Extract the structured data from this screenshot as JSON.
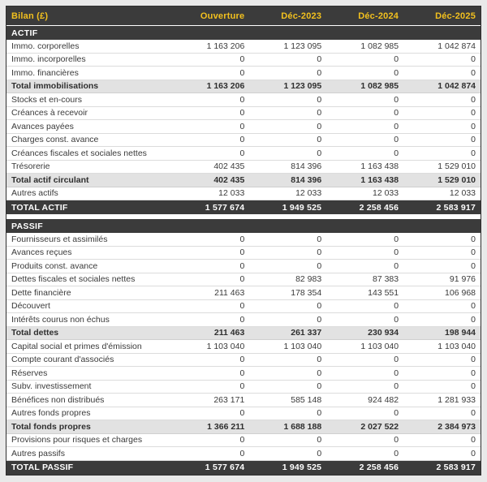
{
  "chart_data": {
    "type": "table",
    "title": "Bilan (£)",
    "columns": [
      "Ouverture",
      "Déc-2023",
      "Déc-2024",
      "Déc-2025"
    ],
    "sections": [
      {
        "name": "ACTIF",
        "rows": [
          {
            "label": "Immo. corporelles",
            "kind": "data",
            "values": [
              "1 163 206",
              "1 123 095",
              "1 082 985",
              "1 042 874"
            ]
          },
          {
            "label": "Immo. incorporelles",
            "kind": "data",
            "values": [
              "0",
              "0",
              "0",
              "0"
            ]
          },
          {
            "label": "Immo. financières",
            "kind": "data",
            "values": [
              "0",
              "0",
              "0",
              "0"
            ]
          },
          {
            "label": "Total immobilisations",
            "kind": "subtotal",
            "values": [
              "1 163 206",
              "1 123 095",
              "1 082 985",
              "1 042 874"
            ]
          },
          {
            "label": "Stocks et en-cours",
            "kind": "data",
            "values": [
              "0",
              "0",
              "0",
              "0"
            ]
          },
          {
            "label": "Créances à recevoir",
            "kind": "data",
            "values": [
              "0",
              "0",
              "0",
              "0"
            ]
          },
          {
            "label": "Avances payées",
            "kind": "data",
            "values": [
              "0",
              "0",
              "0",
              "0"
            ]
          },
          {
            "label": "Charges const. avance",
            "kind": "data",
            "values": [
              "0",
              "0",
              "0",
              "0"
            ]
          },
          {
            "label": "Créances fiscales et sociales nettes",
            "kind": "data",
            "values": [
              "0",
              "0",
              "0",
              "0"
            ]
          },
          {
            "label": "Trésorerie",
            "kind": "data",
            "values": [
              "402 435",
              "814 396",
              "1 163 438",
              "1 529 010"
            ]
          },
          {
            "label": "Total actif circulant",
            "kind": "subtotal",
            "values": [
              "402 435",
              "814 396",
              "1 163 438",
              "1 529 010"
            ]
          },
          {
            "label": "Autres actifs",
            "kind": "data",
            "values": [
              "12 033",
              "12 033",
              "12 033",
              "12 033"
            ]
          },
          {
            "label": "TOTAL ACTIF",
            "kind": "total",
            "values": [
              "1 577 674",
              "1 949 525",
              "2 258 456",
              "2 583 917"
            ]
          }
        ]
      },
      {
        "name": "PASSIF",
        "rows": [
          {
            "label": "Fournisseurs et assimilés",
            "kind": "data",
            "values": [
              "0",
              "0",
              "0",
              "0"
            ]
          },
          {
            "label": "Avances reçues",
            "kind": "data",
            "values": [
              "0",
              "0",
              "0",
              "0"
            ]
          },
          {
            "label": "Produits const. avance",
            "kind": "data",
            "values": [
              "0",
              "0",
              "0",
              "0"
            ]
          },
          {
            "label": "Dettes fiscales et sociales nettes",
            "kind": "data",
            "values": [
              "0",
              "82 983",
              "87 383",
              "91 976"
            ]
          },
          {
            "label": "Dette financière",
            "kind": "data",
            "values": [
              "211 463",
              "178 354",
              "143 551",
              "106 968"
            ]
          },
          {
            "label": "Découvert",
            "kind": "data",
            "values": [
              "0",
              "0",
              "0",
              "0"
            ]
          },
          {
            "label": "Intérêts courus non échus",
            "kind": "data",
            "values": [
              "0",
              "0",
              "0",
              "0"
            ]
          },
          {
            "label": "Total dettes",
            "kind": "subtotal",
            "values": [
              "211 463",
              "261 337",
              "230 934",
              "198 944"
            ]
          },
          {
            "label": "Capital social et primes d'émission",
            "kind": "data",
            "values": [
              "1 103 040",
              "1 103 040",
              "1 103 040",
              "1 103 040"
            ]
          },
          {
            "label": "Compte courant d'associés",
            "kind": "data",
            "values": [
              "0",
              "0",
              "0",
              "0"
            ]
          },
          {
            "label": "Réserves",
            "kind": "data",
            "values": [
              "0",
              "0",
              "0",
              "0"
            ]
          },
          {
            "label": "Subv. investissement",
            "kind": "data",
            "values": [
              "0",
              "0",
              "0",
              "0"
            ]
          },
          {
            "label": "Bénéfices non distribués",
            "kind": "data",
            "values": [
              "263 171",
              "585 148",
              "924 482",
              "1 281 933"
            ]
          },
          {
            "label": "Autres fonds propres",
            "kind": "data",
            "values": [
              "0",
              "0",
              "0",
              "0"
            ]
          },
          {
            "label": "Total fonds propres",
            "kind": "subtotal",
            "values": [
              "1 366 211",
              "1 688 188",
              "2 027 522",
              "2 384 973"
            ]
          },
          {
            "label": "Provisions pour risques et charges",
            "kind": "data",
            "values": [
              "0",
              "0",
              "0",
              "0"
            ]
          },
          {
            "label": "Autres passifs",
            "kind": "data",
            "values": [
              "0",
              "0",
              "0",
              "0"
            ]
          },
          {
            "label": "TOTAL PASSIF",
            "kind": "total",
            "values": [
              "1 577 674",
              "1 949 525",
              "2 258 456",
              "2 583 917"
            ]
          }
        ]
      }
    ],
    "colors": {
      "header_bg": "#3b3b3b",
      "header_text": "#f2c01e",
      "section_header_bg": "#3b3b3b",
      "section_header_text": "#ffffff",
      "subtotal_bg": "#e2e2e2",
      "grand_total_bg": "#3b3b3b",
      "page_bg": "#e9e9e9",
      "row_text": "#3a3a3a"
    }
  }
}
